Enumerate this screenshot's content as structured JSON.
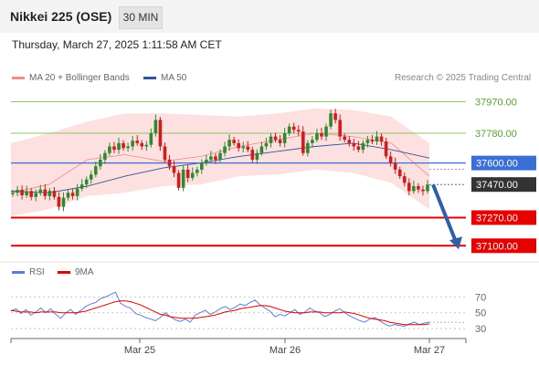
{
  "header": {
    "instrument": "Nikkei 225 (OSE)",
    "timeframe": "30 MIN",
    "timestamp": "Thursday, March 27, 2025 1:11:58 AM CET"
  },
  "legend": {
    "bollinger": "MA 20 + Bollinger Bands",
    "ma50": "MA 50",
    "rsi": "RSI",
    "rsi_ma": "9MA",
    "credit": "Research © 2025 Trading Central"
  },
  "colors": {
    "bollinger": "#f28a8a",
    "ma50": "#2e5597",
    "bull": "#2f8a2f",
    "bear": "#d11c1c",
    "resistance": "#8cc46a",
    "pivot": "#3a6fd8",
    "support": "#e60000",
    "current": "#333333",
    "arrow": "#2e5fa8",
    "rsi": "#5b7fd8",
    "rsi_ma": "#e00000"
  },
  "chart_data": [
    {
      "type": "candlestick",
      "title": "Nikkei 225 (OSE)",
      "timeframe": "30 MIN",
      "x_labels": [
        "Mar 25",
        "Mar 26",
        "Mar 27"
      ],
      "ylim": [
        37030,
        38050
      ],
      "price_levels": [
        {
          "value": 37970.0,
          "label": "37970.00",
          "role": "resistance"
        },
        {
          "value": 37780.0,
          "label": "37780.00",
          "role": "resistance"
        },
        {
          "value": 37600.0,
          "label": "37600.00",
          "role": "pivot"
        },
        {
          "value": 37470.0,
          "label": "37470.00",
          "role": "current"
        },
        {
          "value": 37270.0,
          "label": "37270.00",
          "role": "support"
        },
        {
          "value": 37100.0,
          "label": "37100.00",
          "role": "support"
        }
      ],
      "forecast_arrow": {
        "from": 37470,
        "to": 37100
      },
      "series_close": [
        37420,
        37438,
        37405,
        37430,
        37395,
        37418,
        37440,
        37400,
        37432,
        37395,
        37335,
        37390,
        37420,
        37400,
        37445,
        37470,
        37500,
        37530,
        37580,
        37620,
        37660,
        37700,
        37680,
        37720,
        37690,
        37700,
        37735,
        37720,
        37700,
        37710,
        37780,
        37860,
        37700,
        37620,
        37580,
        37540,
        37450,
        37560,
        37510,
        37540,
        37560,
        37600,
        37620,
        37640,
        37620,
        37660,
        37700,
        37740,
        37720,
        37690,
        37700,
        37680,
        37620,
        37660,
        37700,
        37720,
        37760,
        37740,
        37720,
        37780,
        37820,
        37800,
        37790,
        37660,
        37720,
        37740,
        37780,
        37760,
        37820,
        37900,
        37860,
        37760,
        37740,
        37720,
        37700,
        37680,
        37720,
        37740,
        37730,
        37760,
        37730,
        37640,
        37600,
        37560,
        37520,
        37480,
        37430,
        37460,
        37440,
        37430,
        37470
      ],
      "bollinger_upper": [
        37720,
        37780,
        37850,
        37900,
        37900,
        37890,
        37880,
        37900,
        37930,
        37920,
        37880,
        37720
      ],
      "bollinger_lower": [
        37280,
        37320,
        37400,
        37420,
        37460,
        37470,
        37520,
        37530,
        37560,
        37540,
        37480,
        37320
      ],
      "ma20": [
        37420,
        37470,
        37620,
        37650,
        37610,
        37640,
        37700,
        37740,
        37780,
        37760,
        37720,
        37520
      ],
      "ma50": [
        37430,
        37420,
        37460,
        37520,
        37570,
        37600,
        37640,
        37670,
        37700,
        37720,
        37680,
        37630
      ]
    },
    {
      "type": "line",
      "title": "RSI",
      "ylim": [
        22,
        82
      ],
      "y_ticks": [
        70,
        50,
        30
      ],
      "series": [
        {
          "name": "RSI",
          "values": [
            52,
            55,
            49,
            54,
            47,
            51,
            56,
            50,
            55,
            48,
            43,
            50,
            54,
            48,
            53,
            58,
            61,
            63,
            68,
            70,
            73,
            76,
            62,
            58,
            56,
            49,
            47,
            44,
            42,
            40,
            44,
            50,
            45,
            41,
            39,
            42,
            38,
            47,
            50,
            53,
            48,
            51,
            55,
            58,
            54,
            57,
            61,
            59,
            63,
            66,
            60,
            56,
            52,
            45,
            48,
            46,
            50,
            54,
            48,
            51,
            56,
            52,
            50,
            45,
            48,
            52,
            55,
            50,
            46,
            43,
            40,
            38,
            42,
            44,
            40,
            36,
            33,
            35,
            34,
            33,
            36,
            38,
            35,
            37,
            38
          ]
        },
        {
          "name": "9MA",
          "values": [
            53,
            52,
            51,
            51,
            51,
            50,
            51,
            51,
            51,
            51,
            50,
            50,
            50,
            50,
            51,
            52,
            54,
            56,
            58,
            60,
            62,
            64,
            65,
            65,
            64,
            62,
            60,
            57,
            54,
            51,
            48,
            47,
            45,
            44,
            43,
            43,
            43,
            43,
            44,
            45,
            46,
            47,
            49,
            51,
            52,
            53,
            55,
            56,
            57,
            58,
            59,
            59,
            58,
            56,
            54,
            52,
            51,
            50,
            50,
            50,
            51,
            51,
            51,
            50,
            50,
            50,
            50,
            51,
            50,
            49,
            47,
            45,
            43,
            42,
            41,
            40,
            38,
            37,
            36,
            35,
            35,
            35,
            35,
            35,
            36
          ]
        }
      ]
    }
  ]
}
